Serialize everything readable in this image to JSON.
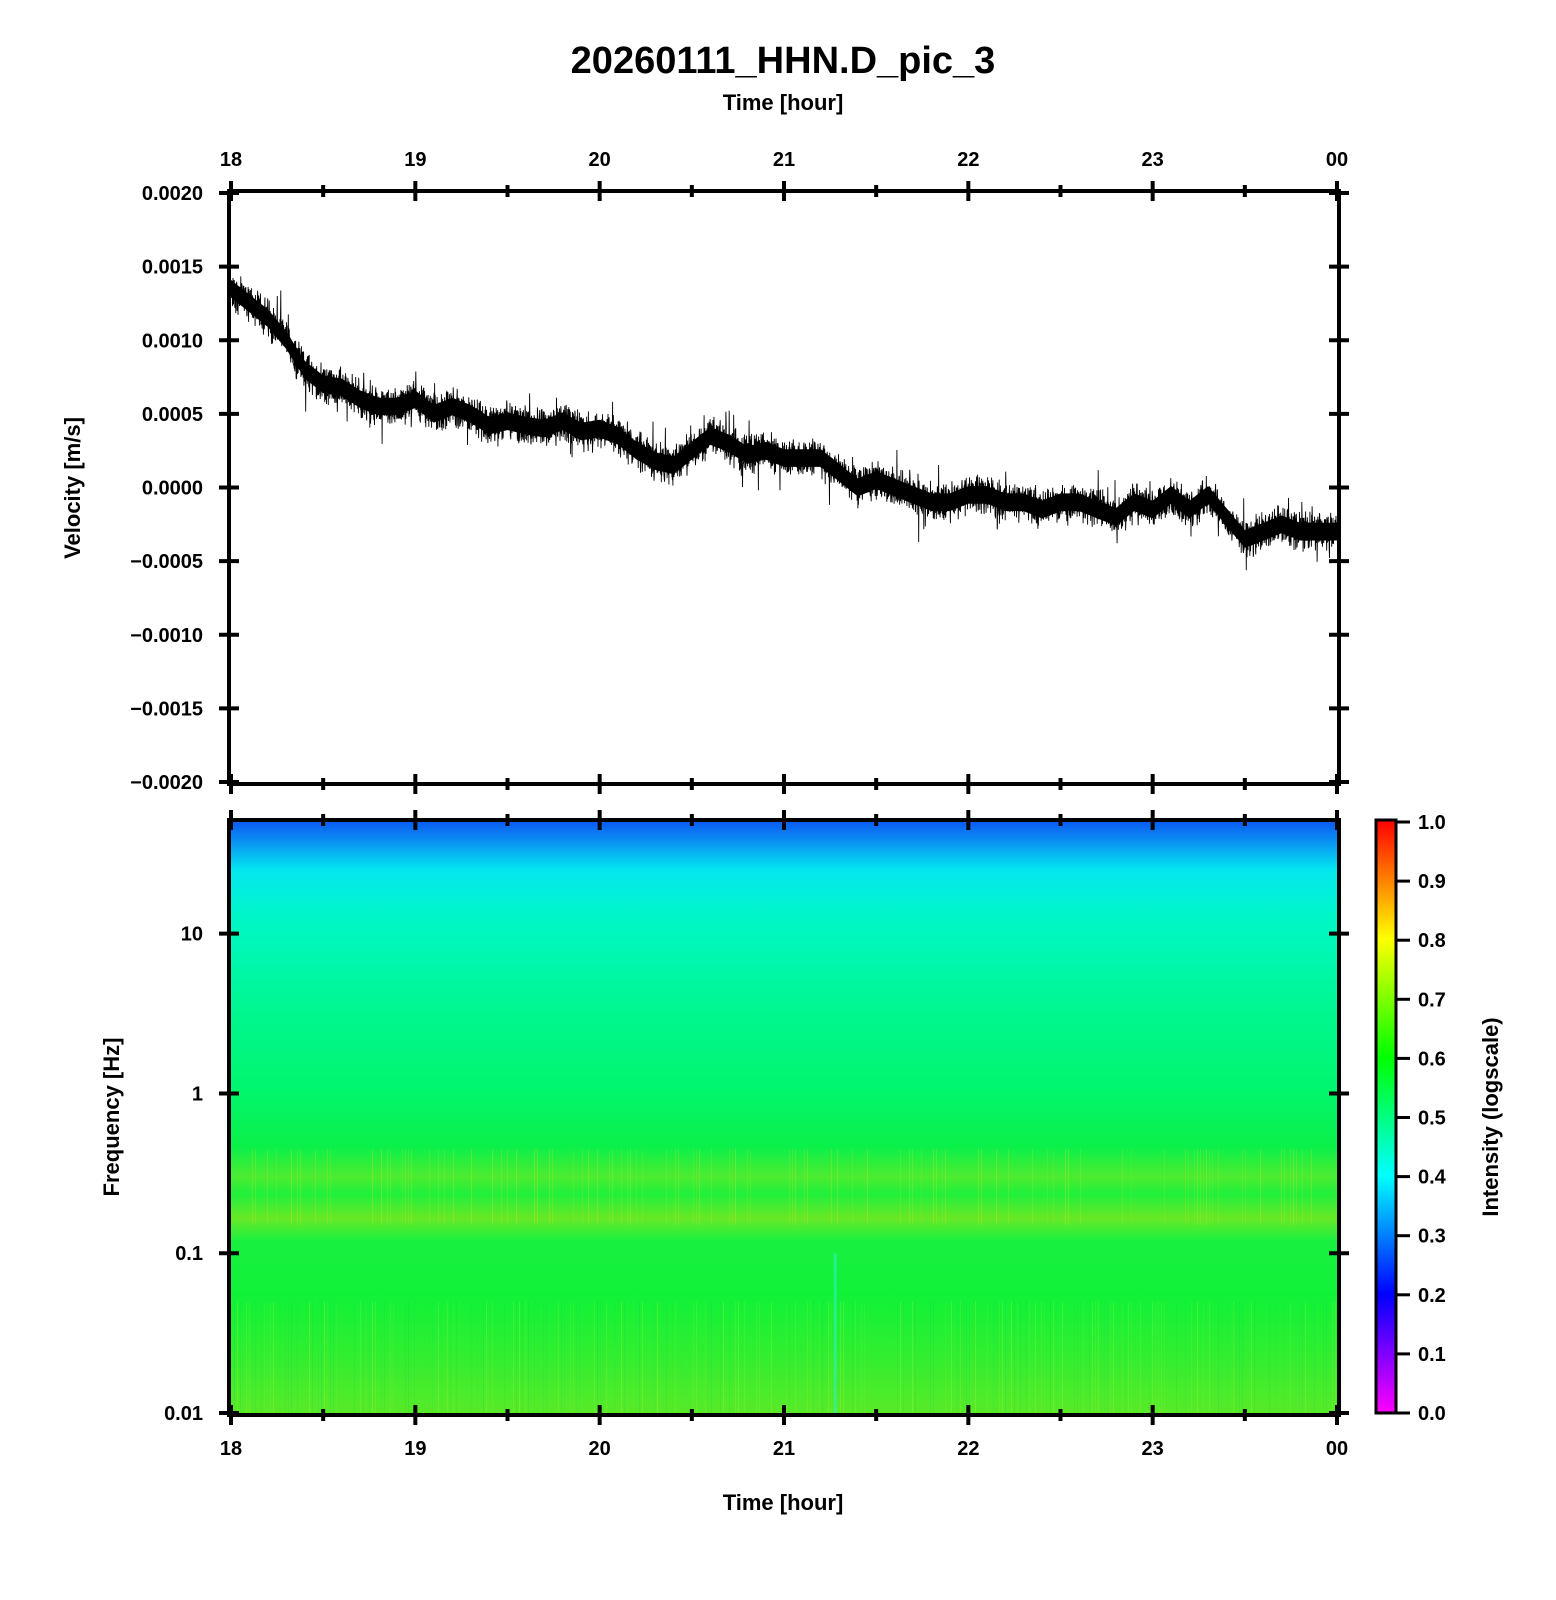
{
  "chart_data": [
    {
      "type": "line",
      "title": "20260111_HHN.D_pic_3",
      "top_xlabel": "Time [hour]",
      "xlabel": "",
      "ylabel": "Velocity [m/s]",
      "x_ticks": [
        "18",
        "19",
        "20",
        "21",
        "22",
        "23",
        "00"
      ],
      "y_ticks": [
        "0.0020",
        "0.0015",
        "0.0010",
        "0.0005",
        "0.0000",
        "−0.0005",
        "−0.0010",
        "−0.0015",
        "−0.0020"
      ],
      "xlim": [
        18,
        24
      ],
      "ylim": [
        -0.002,
        0.002
      ],
      "line_color": "#000000",
      "series": [
        {
          "x": [
            18.0,
            18.1,
            18.2,
            18.3,
            18.4,
            18.5,
            18.6,
            18.7,
            18.8,
            18.9,
            19.0,
            19.1,
            19.2,
            19.3,
            19.4,
            19.5,
            19.6,
            19.7,
            19.8,
            19.9,
            20.0,
            20.1,
            20.2,
            20.3,
            20.4,
            20.5,
            20.6,
            20.7,
            20.8,
            20.9,
            21.0,
            21.1,
            21.2,
            21.3,
            21.4,
            21.5,
            21.6,
            21.7,
            21.8,
            21.9,
            22.0,
            22.1,
            22.2,
            22.3,
            22.4,
            22.5,
            22.6,
            22.7,
            22.8,
            22.9,
            23.0,
            23.1,
            23.2,
            23.3,
            23.4,
            23.5,
            23.6,
            23.7,
            23.8,
            23.9,
            24.0
          ],
          "y": [
            0.00135,
            0.00125,
            0.00115,
            0.001,
            0.0008,
            0.0007,
            0.00068,
            0.0006,
            0.00055,
            0.00055,
            0.0006,
            0.0005,
            0.00055,
            0.0005,
            0.00042,
            0.00045,
            0.00042,
            0.0004,
            0.00045,
            0.00038,
            0.0004,
            0.00035,
            0.00025,
            0.00018,
            0.00015,
            0.00025,
            0.00035,
            0.0003,
            0.00022,
            0.00025,
            0.0002,
            0.0002,
            0.0002,
            0.0001,
            0.0,
            5e-05,
            0.0,
            -5e-05,
            -0.0001,
            -0.0001,
            -5e-05,
            -5e-05,
            -0.0001,
            -0.0001,
            -0.00015,
            -0.0001,
            -0.0001,
            -0.00015,
            -0.0002,
            -0.0001,
            -0.00015,
            -5e-05,
            -0.00015,
            -5e-05,
            -0.0002,
            -0.00035,
            -0.0003,
            -0.00025,
            -0.0003,
            -0.0003,
            -0.0003
          ]
        }
      ]
    },
    {
      "type": "heatmap",
      "xlabel": "Time [hour]",
      "ylabel": "Frequency [Hz]",
      "x_ticks": [
        "18",
        "19",
        "20",
        "21",
        "22",
        "23",
        "00"
      ],
      "y_ticks": [
        "10",
        "1",
        "0.1",
        "0.01"
      ],
      "xlim": [
        18,
        24
      ],
      "ylim": [
        0.01,
        50
      ],
      "y_scale": "log",
      "colorbar": {
        "label": "Intensity (logscale)",
        "range": [
          0.0,
          1.0
        ],
        "ticks": [
          "1.0",
          "0.9",
          "0.8",
          "0.7",
          "0.6",
          "0.5",
          "0.4",
          "0.3",
          "0.2",
          "0.1",
          "0.0"
        ],
        "colormap": [
          "#ff00ff",
          "#0000ff",
          "#00ffff",
          "#00ff00",
          "#ffff00",
          "#ff0000"
        ]
      },
      "intensity_profile": {
        "frequency_hz": [
          50,
          30,
          20,
          10,
          5,
          2,
          1,
          0.5,
          0.3,
          0.2,
          0.1,
          0.03,
          0.01
        ],
        "intensity": [
          0.34,
          0.39,
          0.42,
          0.46,
          0.48,
          0.5,
          0.53,
          0.56,
          0.6,
          0.63,
          0.58,
          0.6,
          0.64
        ]
      }
    }
  ]
}
